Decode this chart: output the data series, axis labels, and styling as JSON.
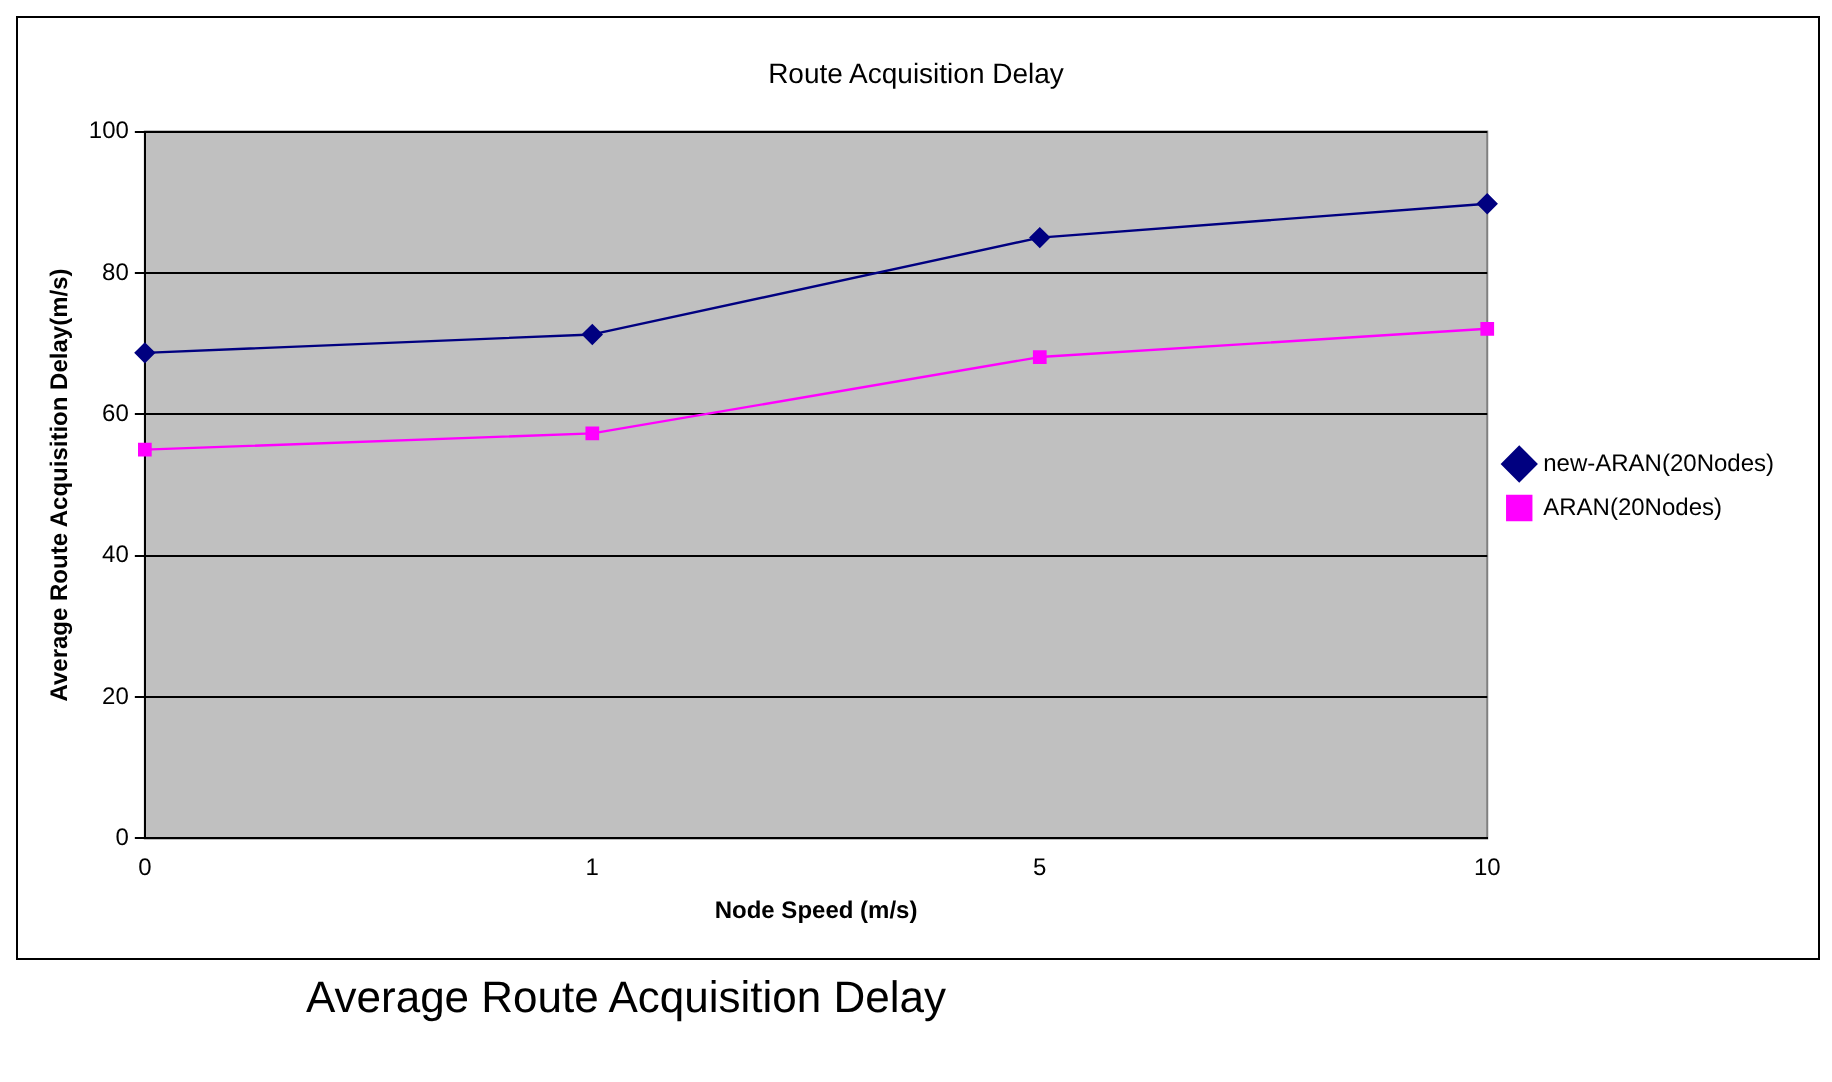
{
  "chart_data": {
    "type": "line",
    "title": "Route Acquisition Delay",
    "xlabel": "Node Speed (m/s)",
    "ylabel": "Average Route Acquisition Delay(m/s)",
    "categories": [
      "0",
      "1",
      "5",
      "10"
    ],
    "series": [
      {
        "name": "new-ARAN(20Nodes)",
        "color": "#000080",
        "marker": "diamond",
        "values": [
          68.7,
          71.3,
          85,
          89.8
        ]
      },
      {
        "name": "ARAN(20Nodes)",
        "color": "#ff00ff",
        "marker": "square",
        "values": [
          55,
          57.3,
          68.1,
          72.1
        ]
      }
    ],
    "ylim": [
      0,
      100
    ],
    "yticks": [
      0,
      20,
      40,
      60,
      80,
      100
    ],
    "grid": "y",
    "legend": "right",
    "annotations": [
      "Average Route Acquisition Delay"
    ]
  }
}
